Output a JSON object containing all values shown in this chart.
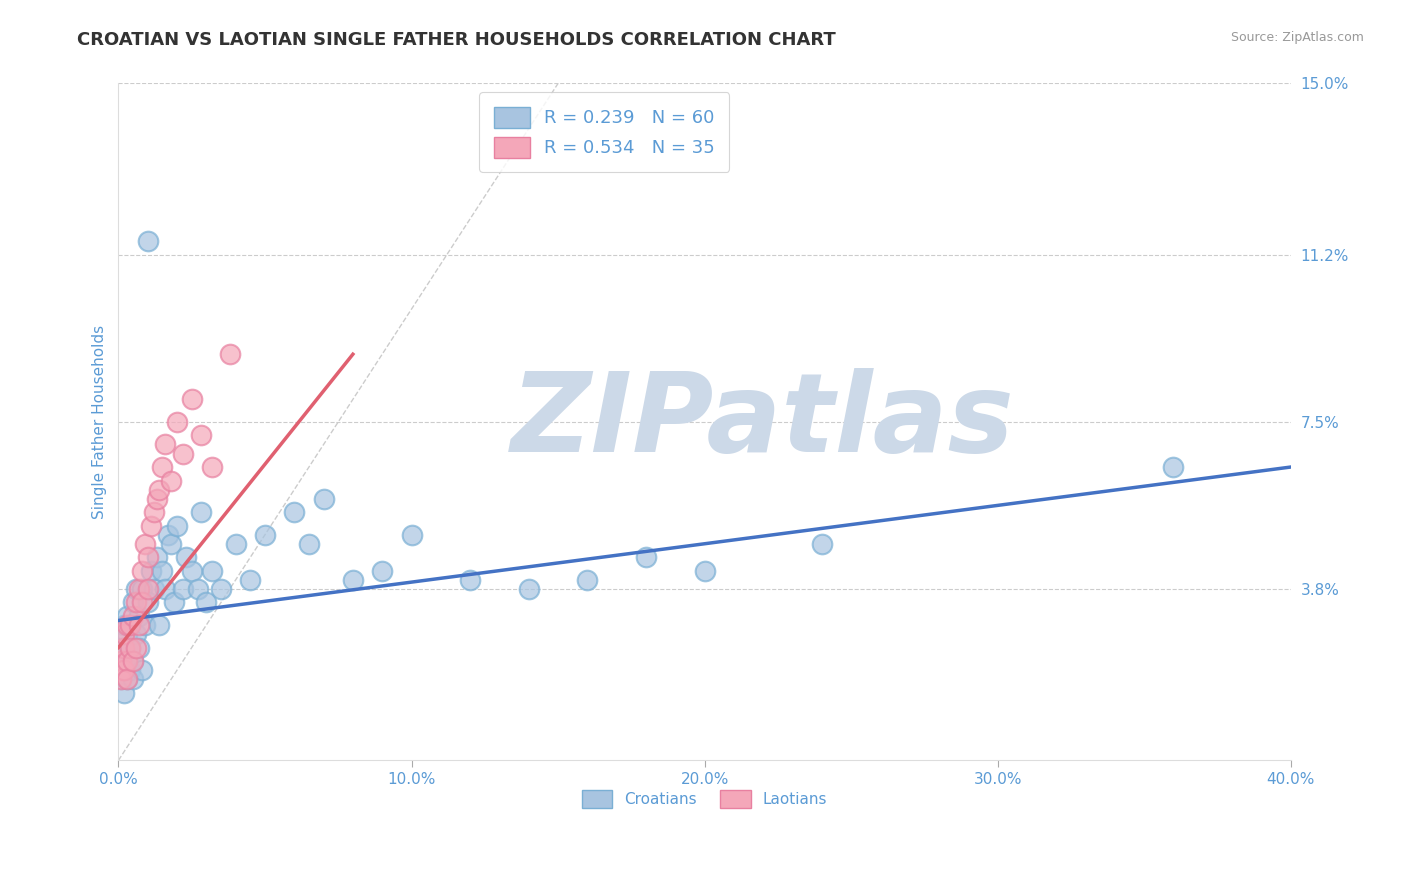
{
  "title": "CROATIAN VS LAOTIAN SINGLE FATHER HOUSEHOLDS CORRELATION CHART",
  "source": "Source: ZipAtlas.com",
  "ylabel": "Single Father Households",
  "xlim": [
    0.0,
    0.4
  ],
  "ylim": [
    0.0,
    0.15
  ],
  "xticks": [
    0.0,
    0.1,
    0.2,
    0.3,
    0.4
  ],
  "xtick_labels": [
    "0.0%",
    "10.0%",
    "20.0%",
    "30.0%",
    "40.0%"
  ],
  "ytick_positions": [
    0.038,
    0.075,
    0.112,
    0.15
  ],
  "ytick_labels": [
    "3.8%",
    "7.5%",
    "11.2%",
    "15.0%"
  ],
  "grid_color": "#cccccc",
  "background_color": "#ffffff",
  "title_color": "#333333",
  "title_fontsize": 13,
  "axis_label_color": "#5b9bd5",
  "tick_label_color": "#5b9bd5",
  "legend_label_color": "#5b9bd5",
  "croatian_color": "#a8c4e0",
  "laotian_color": "#f4a7b9",
  "croatian_edge_color": "#7aafd4",
  "laotian_edge_color": "#e880a0",
  "croatian_line_color": "#4472c4",
  "laotian_line_color": "#e06070",
  "diagonal_line_color": "#cccccc",
  "R_croatian": 0.239,
  "N_croatian": 60,
  "R_laotian": 0.534,
  "N_laotian": 35,
  "croatian_scatter_x": [
    0.001,
    0.001,
    0.001,
    0.002,
    0.002,
    0.002,
    0.002,
    0.003,
    0.003,
    0.003,
    0.003,
    0.004,
    0.004,
    0.004,
    0.005,
    0.005,
    0.005,
    0.006,
    0.006,
    0.007,
    0.007,
    0.008,
    0.008,
    0.009,
    0.01,
    0.01,
    0.011,
    0.012,
    0.013,
    0.014,
    0.015,
    0.016,
    0.017,
    0.018,
    0.019,
    0.02,
    0.022,
    0.023,
    0.025,
    0.027,
    0.028,
    0.03,
    0.032,
    0.035,
    0.04,
    0.045,
    0.05,
    0.06,
    0.065,
    0.07,
    0.08,
    0.09,
    0.1,
    0.12,
    0.14,
    0.16,
    0.18,
    0.2,
    0.24,
    0.36
  ],
  "croatian_scatter_y": [
    0.02,
    0.025,
    0.018,
    0.022,
    0.03,
    0.015,
    0.025,
    0.022,
    0.028,
    0.018,
    0.032,
    0.025,
    0.02,
    0.03,
    0.022,
    0.035,
    0.018,
    0.028,
    0.038,
    0.025,
    0.032,
    0.02,
    0.038,
    0.03,
    0.035,
    0.115,
    0.042,
    0.038,
    0.045,
    0.03,
    0.042,
    0.038,
    0.05,
    0.048,
    0.035,
    0.052,
    0.038,
    0.045,
    0.042,
    0.038,
    0.055,
    0.035,
    0.042,
    0.038,
    0.048,
    0.04,
    0.05,
    0.055,
    0.048,
    0.058,
    0.04,
    0.042,
    0.05,
    0.04,
    0.038,
    0.04,
    0.045,
    0.042,
    0.048,
    0.065
  ],
  "laotian_scatter_x": [
    0.001,
    0.001,
    0.001,
    0.002,
    0.002,
    0.002,
    0.003,
    0.003,
    0.003,
    0.004,
    0.004,
    0.005,
    0.005,
    0.006,
    0.006,
    0.007,
    0.007,
    0.008,
    0.008,
    0.009,
    0.01,
    0.01,
    0.011,
    0.012,
    0.013,
    0.014,
    0.015,
    0.016,
    0.018,
    0.02,
    0.022,
    0.025,
    0.028,
    0.032,
    0.038
  ],
  "laotian_scatter_y": [
    0.02,
    0.022,
    0.018,
    0.025,
    0.02,
    0.028,
    0.022,
    0.03,
    0.018,
    0.025,
    0.03,
    0.022,
    0.032,
    0.035,
    0.025,
    0.038,
    0.03,
    0.042,
    0.035,
    0.048,
    0.045,
    0.038,
    0.052,
    0.055,
    0.058,
    0.06,
    0.065,
    0.07,
    0.062,
    0.075,
    0.068,
    0.08,
    0.072,
    0.065,
    0.09
  ],
  "croatian_trend_x": [
    0.0,
    0.4
  ],
  "croatian_trend_y": [
    0.031,
    0.065
  ],
  "laotian_trend_x": [
    0.0,
    0.08
  ],
  "laotian_trend_y": [
    0.025,
    0.09
  ],
  "watermark_text": "ZIPatlas",
  "watermark_color": "#ccd9e8",
  "watermark_fontsize": 80
}
